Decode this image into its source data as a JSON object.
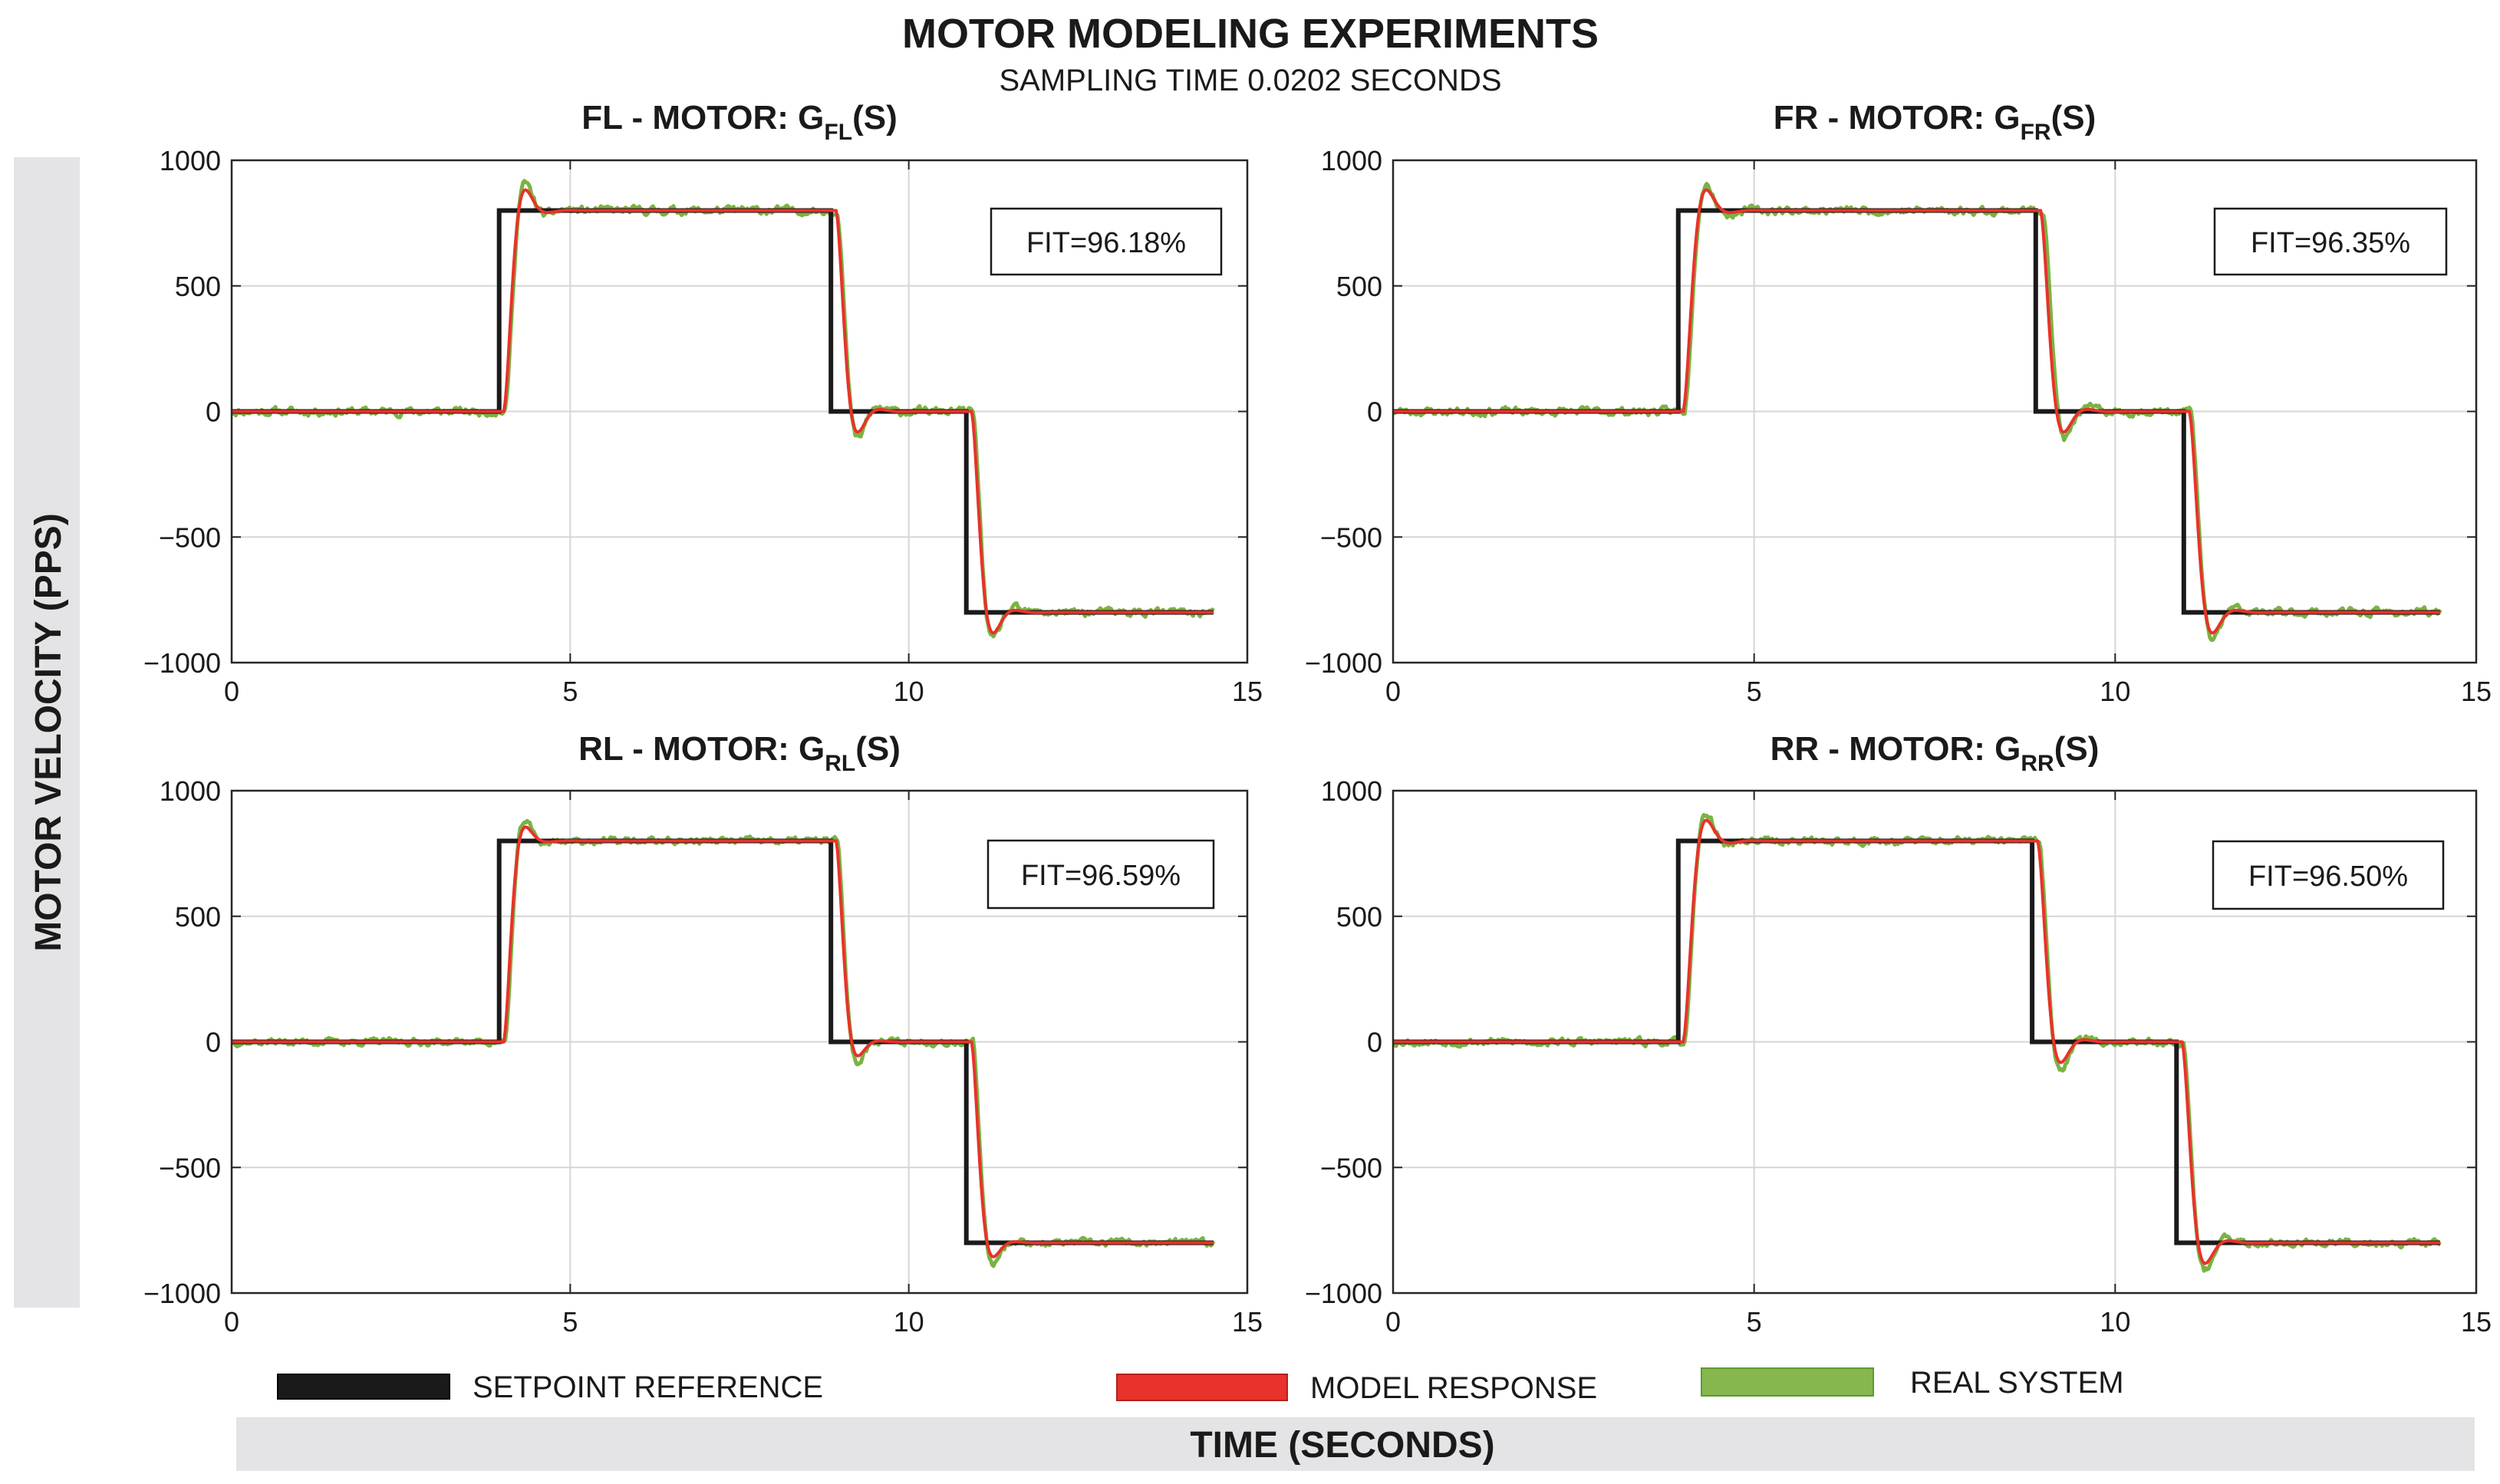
{
  "header": {
    "title": "MOTOR MODELING EXPERIMENTS",
    "subtitle": "SAMPLING TIME 0.0202 SECONDS"
  },
  "axis_labels": {
    "y": "MOTOR VELOCITY (PPS)",
    "x": "TIME (SECONDS)"
  },
  "legend": [
    {
      "label": "SETPOINT REFERENCE",
      "color": "#1a1a1a"
    },
    {
      "label": "MODEL RESPONSE",
      "color": "#e8322a"
    },
    {
      "label": "REAL SYSTEM",
      "color": "#86b64e"
    }
  ],
  "colors": {
    "setpoint": "#1a1a1a",
    "model": "#e8322a",
    "real": "#7ab344",
    "grid": "#d6d6d6",
    "band": "#e4e4e6"
  },
  "chart_data": [
    {
      "type": "line",
      "title_prefix": "FL - MOTOR: G",
      "title_sub": "FL",
      "title_suffix": "(S)",
      "fit_label": "FIT=96.18%",
      "xlim": [
        0,
        15
      ],
      "ylim": [
        -1000,
        1000
      ],
      "xticks": [
        0,
        5,
        10,
        15
      ],
      "yticks": [
        -1000,
        -500,
        0,
        500,
        1000
      ],
      "xtick_labels": [
        "0",
        "5",
        "10",
        "15"
      ],
      "ytick_labels": [
        "−1000",
        "−500",
        "0",
        "500",
        "1000"
      ],
      "grid": true,
      "setpoint_steps": [
        [
          0,
          0
        ],
        [
          3.95,
          800
        ],
        [
          8.85,
          0
        ],
        [
          10.85,
          -800
        ],
        [
          14.5,
          -800
        ]
      ],
      "model_params": {
        "delay": 0.08,
        "zeta": 0.55,
        "wn": 11.0
      },
      "real_noise": 14,
      "seed": 11
    },
    {
      "type": "line",
      "title_prefix": "FR - MOTOR: G",
      "title_sub": "FR",
      "title_suffix": "(S)",
      "fit_label": "FIT=96.35%",
      "xlim": [
        0,
        15
      ],
      "ylim": [
        -1000,
        1000
      ],
      "xticks": [
        0,
        5,
        10,
        15
      ],
      "yticks": [
        -1000,
        -500,
        0,
        500,
        1000
      ],
      "xtick_labels": [
        "0",
        "5",
        "10",
        "15"
      ],
      "ytick_labels": [
        "−1000",
        "−500",
        "0",
        "500",
        "1000"
      ],
      "grid": true,
      "setpoint_steps": [
        [
          0,
          0
        ],
        [
          3.95,
          800
        ],
        [
          8.9,
          0
        ],
        [
          10.95,
          -800
        ],
        [
          14.5,
          -800
        ]
      ],
      "model_params": {
        "delay": 0.08,
        "zeta": 0.55,
        "wn": 11.0
      },
      "real_noise": 14,
      "seed": 23
    },
    {
      "type": "line",
      "title_prefix": "RL - MOTOR: G",
      "title_sub": "RL",
      "title_suffix": "(S)",
      "fit_label": "FIT=96.59%",
      "xlim": [
        0,
        15
      ],
      "ylim": [
        -1000,
        1000
      ],
      "xticks": [
        0,
        5,
        10,
        15
      ],
      "yticks": [
        -1000,
        -500,
        0,
        500,
        1000
      ],
      "xtick_labels": [
        "0",
        "5",
        "10",
        "15"
      ],
      "ytick_labels": [
        "−1000",
        "−500",
        "0",
        "500",
        "1000"
      ],
      "grid": true,
      "setpoint_steps": [
        [
          0,
          0
        ],
        [
          3.95,
          800
        ],
        [
          8.85,
          0
        ],
        [
          10.85,
          -800
        ],
        [
          14.5,
          -800
        ]
      ],
      "model_params": {
        "delay": 0.08,
        "zeta": 0.6,
        "wn": 11.5
      },
      "real_noise": 12,
      "seed": 37
    },
    {
      "type": "line",
      "title_prefix": "RR - MOTOR: G",
      "title_sub": "RR",
      "title_suffix": "(S)",
      "fit_label": "FIT=96.50%",
      "xlim": [
        0,
        15
      ],
      "ylim": [
        -1000,
        1000
      ],
      "xticks": [
        0,
        5,
        10,
        15
      ],
      "yticks": [
        -1000,
        -500,
        0,
        500,
        1000
      ],
      "xtick_labels": [
        "0",
        "5",
        "10",
        "15"
      ],
      "ytick_labels": [
        "−1000",
        "−500",
        "0",
        "500",
        "1000"
      ],
      "grid": true,
      "setpoint_steps": [
        [
          0,
          0
        ],
        [
          3.95,
          800
        ],
        [
          8.85,
          0
        ],
        [
          10.85,
          -800
        ],
        [
          14.5,
          -800
        ]
      ],
      "model_params": {
        "delay": 0.08,
        "zeta": 0.55,
        "wn": 11.0
      },
      "real_noise": 13,
      "seed": 53
    }
  ]
}
